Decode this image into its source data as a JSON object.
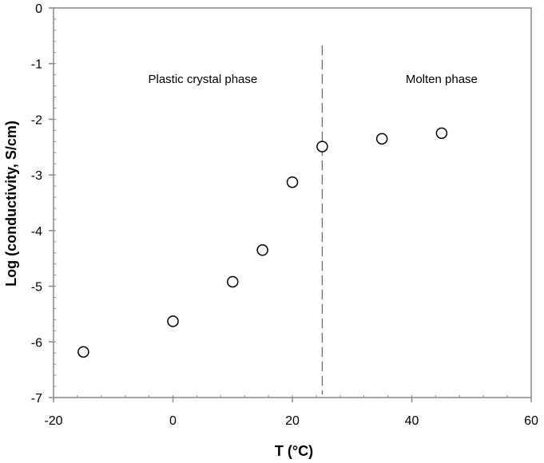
{
  "chart_data": {
    "type": "scatter",
    "xlabel": "T (°C)",
    "ylabel": "Log (conductivity, S/cm)",
    "xlim": [
      -20,
      60
    ],
    "ylim": [
      -7,
      0
    ],
    "x_ticks": [
      -20,
      0,
      20,
      40,
      60
    ],
    "y_ticks": [
      0,
      -1,
      -2,
      -3,
      -4,
      -5,
      -6,
      -7
    ],
    "x_tick_labels": [
      "-20",
      "0",
      "20",
      "40",
      "60"
    ],
    "y_tick_labels": [
      "0",
      "-1",
      "-2",
      "-3",
      "-4",
      "-5",
      "-6",
      "-7"
    ],
    "grid": false,
    "marker": "open-circle",
    "series": [
      {
        "points": [
          {
            "x": -15,
            "y": -6.18
          },
          {
            "x": 0,
            "y": -5.63
          },
          {
            "x": 10,
            "y": -4.92
          },
          {
            "x": 15,
            "y": -4.35
          },
          {
            "x": 20,
            "y": -3.13
          },
          {
            "x": 25,
            "y": -2.49
          },
          {
            "x": 35,
            "y": -2.35
          },
          {
            "x": 45,
            "y": -2.25
          }
        ]
      }
    ],
    "phase_boundary_x": 25,
    "annotations": [
      {
        "text": "Plastic crystal phase",
        "x": 5,
        "y": -1.35
      },
      {
        "text": "Molten phase",
        "x": 45,
        "y": -1.35
      }
    ]
  }
}
